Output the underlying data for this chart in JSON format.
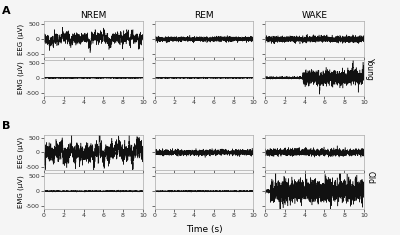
{
  "col_labels": [
    "NREM",
    "REM",
    "WAKE"
  ],
  "ylabel_eeg": "EEG (μV)",
  "ylabel_emg": "EMG (μV)",
  "xlabel": "Time (s)",
  "xlim": [
    0,
    10
  ],
  "ylim_eeg": [
    -600,
    600
  ],
  "ylim_emg": [
    -600,
    600
  ],
  "yticks": [
    -500,
    0,
    500
  ],
  "xticks": [
    0,
    2,
    4,
    6,
    8,
    10
  ],
  "fs": 200,
  "duration": 10,
  "background": "#f5f5f5",
  "line_color": "#111111",
  "seed": 42,
  "eeg_young_nrem_amp": 130,
  "eeg_young_rem_amp": 55,
  "eeg_young_wake_amp": 75,
  "emg_young_nrem_amp": 8,
  "emg_young_rem_amp": 8,
  "emg_young_wake_amp": 120,
  "emg_young_wake_onset": 3.8,
  "eeg_old_nrem_amp": 220,
  "eeg_old_rem_amp": 65,
  "eeg_old_wake_amp": 85,
  "emg_old_nrem_amp": 10,
  "emg_old_rem_amp": 10,
  "emg_old_wake_amp": 180,
  "emg_old_wake_onset": 0.5,
  "spine_color": "#aaaaaa",
  "label_A": "A",
  "label_B": "B",
  "label_young": "Young",
  "label_old": "Old"
}
